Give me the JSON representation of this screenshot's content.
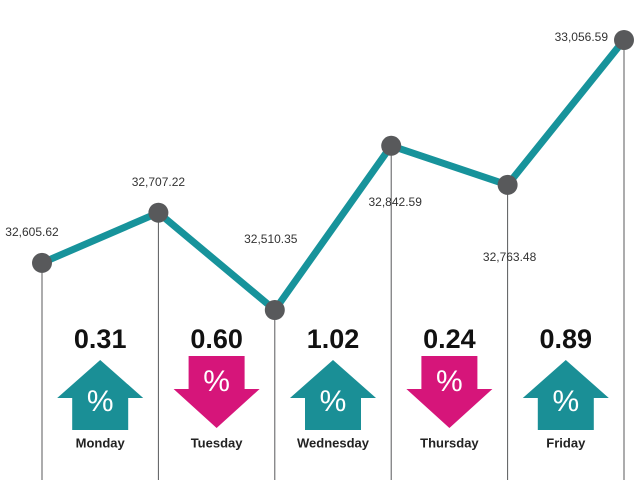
{
  "chart_data": {
    "type": "line",
    "points": [
      32605.62,
      32707.22,
      32510.35,
      32842.59,
      32763.48,
      33056.59
    ],
    "point_labels": [
      "32,605.62",
      "32,707.22",
      "32,510.35",
      "32,842.59",
      "32,763.48",
      "33,056.59"
    ],
    "line_color": "#17939b",
    "point_color": "#58595b",
    "days": [
      "Monday",
      "Tuesday",
      "Wednesday",
      "Thursday",
      "Friday"
    ],
    "changes": [
      0.31,
      0.6,
      1.02,
      0.24,
      0.89
    ],
    "change_labels": [
      "0.31",
      "0.60",
      "1.02",
      "0.24",
      "0.89"
    ],
    "directions": [
      "up",
      "down",
      "up",
      "down",
      "up"
    ],
    "arrow_symbol": "%",
    "up_color": "#1a8f96",
    "down_color": "#d6157a"
  }
}
